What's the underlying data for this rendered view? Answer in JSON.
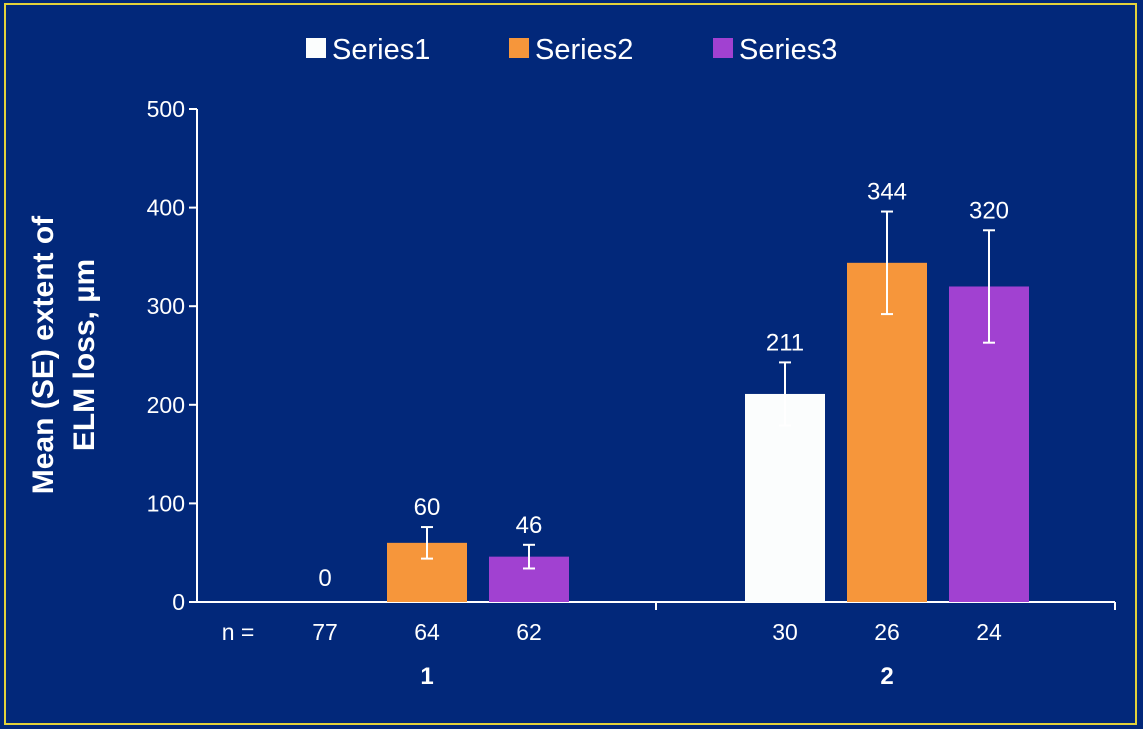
{
  "chart_data": {
    "type": "bar",
    "categories": [
      "1",
      "2"
    ],
    "series": [
      {
        "name": "Series1",
        "color": "#fbfdfd",
        "values": [
          0,
          211
        ],
        "errors": [
          0,
          32
        ],
        "n": [
          "77",
          "30"
        ]
      },
      {
        "name": "Series2",
        "color": "#f6963b",
        "values": [
          60,
          344
        ],
        "errors": [
          16,
          52
        ],
        "n": [
          "64",
          "26"
        ]
      },
      {
        "name": "Series3",
        "color": "#a141d1",
        "values": [
          46,
          320
        ],
        "errors": [
          12,
          57
        ],
        "n": [
          "62",
          "24"
        ]
      }
    ],
    "value_labels": [
      [
        "0",
        "211"
      ],
      [
        "60",
        "344"
      ],
      [
        "46",
        "320"
      ]
    ],
    "ylabel_lines": [
      "Mean (SE) extent of",
      "ELM loss, µm"
    ],
    "ylim": [
      0,
      500
    ],
    "yticks": [
      0,
      100,
      200,
      300,
      400,
      500
    ],
    "n_label": "n =",
    "legend_position": "top",
    "grid": false
  },
  "colors": {
    "background": "#02287a",
    "border": "#e3d23b",
    "axis": "#ffffff"
  }
}
